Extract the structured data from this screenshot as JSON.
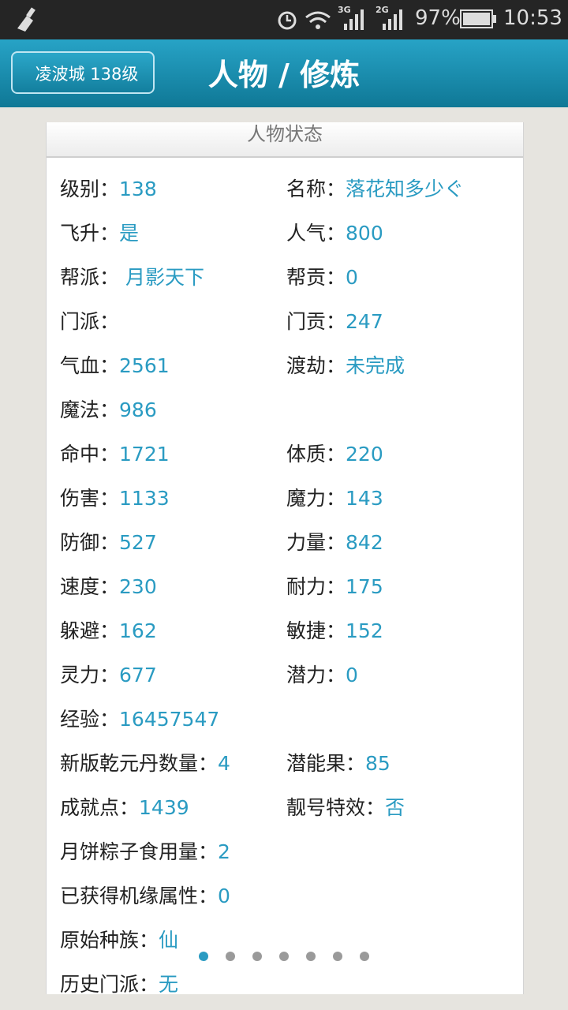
{
  "status_bar": {
    "network_1": "3G",
    "network_2": "2G",
    "battery": "97%",
    "time": "10:53"
  },
  "header": {
    "back": "凌波城 138级",
    "title": "人物 / 修炼"
  },
  "card": {
    "title": "人物状态",
    "rows": [
      [
        {
          "label": "级别：",
          "value": "138"
        },
        {
          "label": "名称：",
          "value": "落花知多少ぐ"
        }
      ],
      [
        {
          "label": "飞升：",
          "value": "是"
        },
        {
          "label": "人气：",
          "value": "800"
        }
      ],
      [
        {
          "label": "帮派：",
          "value": " 月影天下"
        },
        {
          "label": "帮贡：",
          "value": "0"
        }
      ],
      [
        {
          "label": "门派："
        },
        {
          "label": "门贡：",
          "value": "247"
        }
      ],
      [
        {
          "label": "气血：",
          "value": "2561"
        },
        {
          "label": "渡劫：",
          "value": "未完成"
        }
      ],
      [
        {
          "label": "魔法：",
          "value": "986"
        }
      ],
      [
        {
          "label": "命中：",
          "value": "1721"
        },
        {
          "label": "体质：",
          "value": "220"
        }
      ],
      [
        {
          "label": "伤害：",
          "value": "1133"
        },
        {
          "label": "魔力：",
          "value": "143"
        }
      ],
      [
        {
          "label": "防御：",
          "value": "527"
        },
        {
          "label": "力量：",
          "value": "842"
        }
      ],
      [
        {
          "label": "速度：",
          "value": "230"
        },
        {
          "label": "耐力：",
          "value": "175"
        }
      ],
      [
        {
          "label": "躲避：",
          "value": "162"
        },
        {
          "label": "敏捷：",
          "value": "152"
        }
      ],
      [
        {
          "label": "灵力：",
          "value": "677"
        },
        {
          "label": "潜力：",
          "value": "0"
        }
      ],
      [
        {
          "label": "经验：",
          "value": "16457547"
        }
      ],
      [
        {
          "label": "新版乾元丹数量：",
          "value": "4"
        },
        {
          "label": "潜能果：",
          "value": "85"
        }
      ],
      [
        {
          "label": "成就点：",
          "value": "1439"
        },
        {
          "label": "靓号特效：",
          "value": "否"
        }
      ],
      [
        {
          "label": "月饼粽子食用量：",
          "value": "2"
        }
      ],
      [
        {
          "label": "已获得机缘属性：",
          "value": "0"
        }
      ],
      [
        {
          "label": "原始种族：",
          "value": "仙"
        }
      ],
      [
        {
          "label": "历史门派：",
          "value": "无"
        }
      ]
    ]
  }
}
